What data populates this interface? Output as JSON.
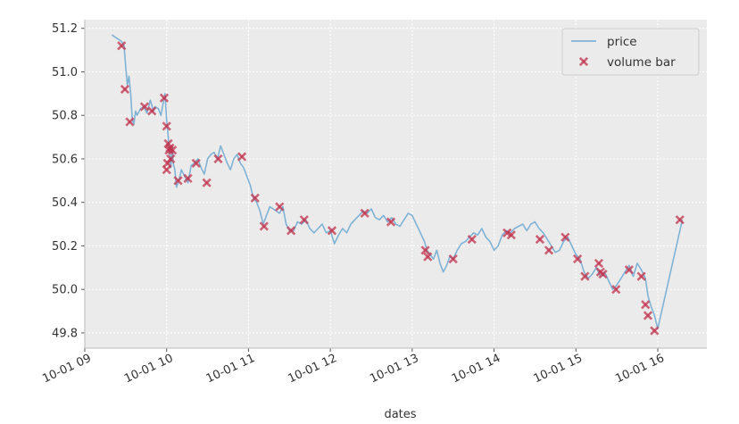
{
  "chart_data": {
    "type": "line",
    "title": "",
    "xlabel": "dates",
    "ylabel": "",
    "grid": true,
    "legend_position": "top-right",
    "colors": {
      "price": "#7fb3d5",
      "volume_bar": "#c0334d",
      "background": "#ebebeb",
      "grid": "#ffffff"
    },
    "x_range_hours": [
      9.0,
      16.6
    ],
    "ylim": [
      49.73,
      51.24
    ],
    "x_ticks": [
      {
        "h": 9,
        "label": "10-01 09"
      },
      {
        "h": 10,
        "label": "10-01 10"
      },
      {
        "h": 11,
        "label": "10-01 11"
      },
      {
        "h": 12,
        "label": "10-01 12"
      },
      {
        "h": 13,
        "label": "10-01 13"
      },
      {
        "h": 14,
        "label": "10-01 14"
      },
      {
        "h": 15,
        "label": "10-01 15"
      },
      {
        "h": 16,
        "label": "10-01 16"
      }
    ],
    "y_ticks": [
      {
        "v": 49.8,
        "label": "49.8"
      },
      {
        "v": 50.0,
        "label": "50.0"
      },
      {
        "v": 50.2,
        "label": "50.2"
      },
      {
        "v": 50.4,
        "label": "50.4"
      },
      {
        "v": 50.6,
        "label": "50.6"
      },
      {
        "v": 50.8,
        "label": "50.8"
      },
      {
        "v": 51.0,
        "label": "51.0"
      },
      {
        "v": 51.2,
        "label": "51.2"
      }
    ],
    "series": [
      {
        "name": "price",
        "type": "line",
        "x_hours": [
          9.33,
          9.45,
          9.48,
          9.5,
          9.52,
          9.54,
          9.56,
          9.58,
          9.6,
          9.62,
          9.64,
          9.68,
          9.72,
          9.76,
          9.8,
          9.84,
          9.86,
          9.9,
          9.93,
          9.96,
          9.98,
          10.0,
          10.01,
          10.02,
          10.03,
          10.04,
          10.05,
          10.06,
          10.07,
          10.08,
          10.1,
          10.12,
          10.15,
          10.18,
          10.22,
          10.26,
          10.3,
          10.34,
          10.38,
          10.42,
          10.46,
          10.5,
          10.54,
          10.58,
          10.62,
          10.66,
          10.7,
          10.74,
          10.78,
          10.82,
          10.86,
          10.9,
          10.94,
          10.98,
          11.02,
          11.06,
          11.1,
          11.14,
          11.18,
          11.22,
          11.26,
          11.3,
          11.34,
          11.38,
          11.42,
          11.46,
          11.5,
          11.55,
          11.6,
          11.65,
          11.7,
          11.75,
          11.8,
          11.85,
          11.9,
          11.95,
          12.0,
          12.05,
          12.1,
          12.15,
          12.2,
          12.25,
          12.3,
          12.35,
          12.4,
          12.45,
          12.5,
          12.55,
          12.6,
          12.65,
          12.7,
          12.75,
          12.8,
          12.85,
          12.9,
          12.95,
          13.0,
          13.05,
          13.1,
          13.15,
          13.18,
          13.22,
          13.26,
          13.3,
          13.34,
          13.38,
          13.42,
          13.46,
          13.5,
          13.55,
          13.6,
          13.65,
          13.7,
          13.75,
          13.8,
          13.85,
          13.9,
          13.95,
          14.0,
          14.05,
          14.1,
          14.15,
          14.2,
          14.25,
          14.3,
          14.35,
          14.4,
          14.45,
          14.5,
          14.55,
          14.6,
          14.65,
          14.7,
          14.75,
          14.8,
          14.85,
          14.9,
          14.95,
          15.0,
          15.05,
          15.1,
          15.15,
          15.2,
          15.25,
          15.3,
          15.35,
          15.4,
          15.45,
          15.5,
          15.55,
          15.6,
          15.65,
          15.7,
          15.75,
          15.8,
          15.85,
          15.88,
          15.92,
          15.96,
          16.0,
          16.3
        ],
        "y": [
          51.17,
          51.14,
          51.12,
          51.02,
          50.94,
          50.98,
          50.9,
          50.78,
          50.76,
          50.82,
          50.8,
          50.83,
          50.84,
          50.81,
          50.87,
          50.82,
          50.84,
          50.83,
          50.8,
          50.86,
          50.9,
          50.78,
          50.74,
          50.7,
          50.64,
          50.62,
          50.56,
          50.6,
          50.66,
          50.58,
          50.55,
          50.47,
          50.5,
          50.55,
          50.52,
          50.49,
          50.57,
          50.58,
          50.6,
          50.56,
          50.53,
          50.6,
          50.62,
          50.63,
          50.6,
          50.66,
          50.62,
          50.58,
          50.55,
          50.6,
          50.62,
          50.58,
          50.56,
          50.52,
          50.48,
          50.42,
          50.4,
          50.36,
          50.3,
          50.34,
          50.38,
          50.37,
          50.36,
          50.35,
          50.38,
          50.3,
          50.27,
          50.27,
          50.31,
          50.3,
          50.32,
          50.28,
          50.26,
          50.28,
          50.3,
          50.26,
          50.27,
          50.21,
          50.25,
          50.28,
          50.26,
          50.3,
          50.32,
          50.34,
          50.36,
          50.35,
          50.37,
          50.33,
          50.32,
          50.34,
          50.31,
          50.33,
          50.3,
          50.29,
          50.32,
          50.35,
          50.34,
          50.3,
          50.26,
          50.22,
          50.18,
          50.16,
          50.14,
          50.18,
          50.12,
          50.08,
          50.11,
          50.15,
          50.14,
          50.18,
          50.21,
          50.22,
          50.24,
          50.26,
          50.25,
          50.28,
          50.24,
          50.22,
          50.18,
          50.2,
          50.25,
          50.27,
          50.26,
          50.28,
          50.29,
          50.3,
          50.27,
          50.3,
          50.31,
          50.28,
          50.26,
          50.23,
          50.2,
          50.17,
          50.18,
          50.22,
          50.24,
          50.2,
          50.16,
          50.14,
          50.08,
          50.05,
          50.07,
          50.1,
          50.06,
          50.08,
          50.04,
          50.0,
          50.02,
          50.05,
          50.08,
          50.11,
          50.06,
          50.12,
          50.09,
          50.05,
          49.97,
          49.92,
          49.88,
          49.82,
          50.32
        ],
        "color": "#7fb3d5"
      },
      {
        "name": "volume bar",
        "type": "scatter",
        "marker": "x",
        "x_hours": [
          9.45,
          9.49,
          9.55,
          9.73,
          9.82,
          9.97,
          10.0,
          10.02,
          10.03,
          10.04,
          10.05,
          10.07,
          10.01,
          10.0,
          10.14,
          10.26,
          10.36,
          10.49,
          10.63,
          10.92,
          11.08,
          11.19,
          11.38,
          11.52,
          11.68,
          12.02,
          12.42,
          12.74,
          13.16,
          13.19,
          13.5,
          13.73,
          14.16,
          14.21,
          14.56,
          14.67,
          14.87,
          15.02,
          15.11,
          15.28,
          15.3,
          15.33,
          15.49,
          15.65,
          15.8,
          15.85,
          15.88,
          15.96,
          16.27
        ],
        "y": [
          51.12,
          50.92,
          50.77,
          50.84,
          50.82,
          50.88,
          50.75,
          50.67,
          50.64,
          50.65,
          50.6,
          50.64,
          50.58,
          50.55,
          50.5,
          50.51,
          50.58,
          50.49,
          50.6,
          50.61,
          50.42,
          50.29,
          50.38,
          50.27,
          50.32,
          50.27,
          50.35,
          50.31,
          50.18,
          50.15,
          50.14,
          50.23,
          50.26,
          50.25,
          50.23,
          50.18,
          50.24,
          50.14,
          50.06,
          50.12,
          50.08,
          50.07,
          50.0,
          50.09,
          50.06,
          49.93,
          49.88,
          49.81,
          50.32
        ],
        "color": "#c0334d"
      }
    ]
  }
}
